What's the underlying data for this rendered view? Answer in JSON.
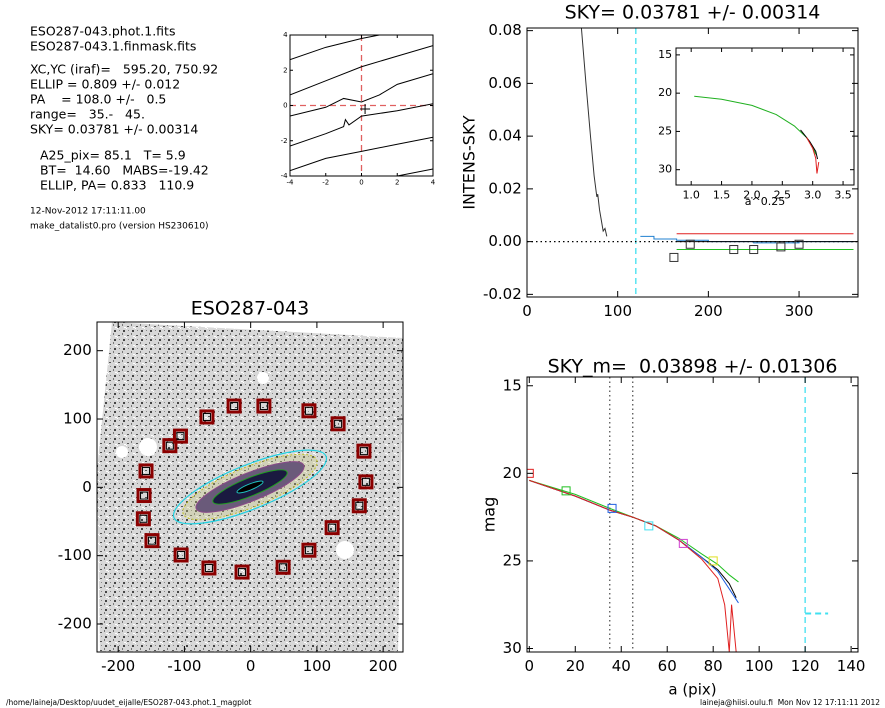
{
  "header": {
    "lines": [
      "ESO287-043.phot.1.fits",
      "ESO287-043.1.finmask.fits",
      "XC,YC (iraf)=   595.20, 750.92",
      "ELLIP = 0.809 +/- 0.012",
      "PA    = 108.0 +/-   0.5",
      "range=   35.-   45.",
      "SKY= 0.03781 +/- 0.00314",
      "A25_pix= 85.1   T= 5.9",
      "BT=  14.60   MABS=-19.42",
      "ELLIP, PA= 0.833   110.9"
    ],
    "timestamp": "12-Nov-2012 17:11:11.00",
    "program": "make_datalist0.pro (version HS230610)"
  },
  "footer": {
    "path": "/home/laineja/Desktop/uudet_eijalle/ESO287-043.phot.1_magplot",
    "user": "laineja@hiisi.oulu.fi  Mon Nov 12 17:11:11 2012"
  },
  "chart_data": [
    {
      "type": "line",
      "xlim": [
        -4,
        4
      ],
      "ylim": [
        -4,
        4
      ],
      "xticks": [
        -4,
        -2,
        0,
        2,
        4
      ],
      "yticks": [
        -4,
        -2,
        0,
        2,
        4
      ],
      "vlines": [
        {
          "x": 0,
          "color": "#e06060",
          "style": "dashed"
        }
      ],
      "hlines": [
        {
          "y": 0,
          "color": "#e06060",
          "style": "dashed"
        }
      ],
      "series": [
        {
          "color": "#000000",
          "style": "solid",
          "x": [
            -4,
            -2,
            0,
            1
          ],
          "values": [
            2.6,
            3.3,
            3.8,
            4
          ]
        },
        {
          "color": "#000000",
          "style": "solid",
          "x": [
            -4,
            -2,
            0,
            2,
            4
          ],
          "values": [
            0.6,
            1.4,
            2.2,
            2.8,
            3.4
          ]
        },
        {
          "color": "#000000",
          "style": "solid",
          "x": [
            -4,
            -2,
            -1,
            0,
            1,
            2,
            4
          ],
          "values": [
            -0.6,
            -0.1,
            0.4,
            0.2,
            0.6,
            1.2,
            1.8
          ]
        },
        {
          "color": "#000000",
          "style": "solid",
          "x": [
            -4,
            -2,
            -1,
            -0.9,
            -0.7,
            0,
            2,
            4
          ],
          "values": [
            -2.3,
            -1.6,
            -1.2,
            -0.8,
            -1.1,
            -0.6,
            -0.3,
            0.1
          ]
        },
        {
          "color": "#000000",
          "style": "solid",
          "x": [
            -4,
            -2,
            0,
            2,
            4
          ],
          "values": [
            -3.7,
            -3.0,
            -2.6,
            -2.2,
            -1.8
          ]
        },
        {
          "color": "#000000",
          "style": "solid",
          "x": [
            2,
            4
          ],
          "values": [
            -4,
            -3.6
          ]
        },
        {
          "color": "#000000",
          "style": "cross",
          "x": [
            0.2
          ],
          "values": [
            -0.2
          ]
        }
      ]
    },
    {
      "type": "line",
      "title": "SKY= 0.03781 +/- 0.00314",
      "ylabel": "INTENS-SKY",
      "xlim": [
        0,
        365
      ],
      "ylim": [
        -0.021,
        0.081
      ],
      "xticks": [
        0,
        100,
        200,
        300
      ],
      "yticks": [
        -0.02,
        {
          "value": 0,
          "label": "0.00"
        },
        0.02,
        0.04,
        0.06,
        0.08
      ],
      "vlines": [
        {
          "x": 120,
          "color": "#40e0f0",
          "style": "dashed"
        }
      ],
      "hlines": [
        {
          "y": 0,
          "color": "#000000",
          "style": "dotted"
        }
      ],
      "series": [
        {
          "color": "#333333",
          "style": "solid",
          "x": [
            60,
            65,
            70,
            74,
            77,
            78,
            80,
            82,
            84,
            86,
            88
          ],
          "values": [
            0.081,
            0.06,
            0.04,
            0.025,
            0.017,
            0.018,
            0.012,
            0.008,
            0.004,
            0.005,
            0.002
          ]
        },
        {
          "color": "#2080d0",
          "style": "solid",
          "x": [
            125,
            140,
            140,
            165,
            165,
            200,
            200,
            250,
            250,
            300,
            300,
            360
          ],
          "values": [
            0.002,
            0.002,
            0.001,
            0.001,
            0.0005,
            0.0005,
            0,
            0,
            -0.0005,
            -0.0005,
            0,
            0
          ]
        },
        {
          "color": "#e02020",
          "style": "solid",
          "x": [
            165,
            360
          ],
          "values": [
            0.003,
            0.003
          ]
        },
        {
          "color": "#20c020",
          "style": "solid",
          "x": [
            165,
            360
          ],
          "values": [
            -0.003,
            -0.003
          ]
        },
        {
          "color": "#000000",
          "style": "solid",
          "x": [
            165,
            360
          ],
          "values": [
            0,
            0
          ]
        },
        {
          "color": "#333333",
          "style": "square",
          "x": [
            162,
            180,
            228,
            250,
            280,
            300
          ],
          "values": [
            -0.006,
            -0.001,
            -0.003,
            -0.003,
            -0.002,
            -0.001
          ]
        }
      ]
    },
    {
      "type": "line",
      "xlabel": "a^0.25",
      "xlim": [
        0.75,
        3.68
      ],
      "ylim": [
        14.1,
        32
      ],
      "yreverse": true,
      "xticks": [
        {
          "value": 1,
          "label": "1.0"
        },
        1.5,
        {
          "value": 2,
          "label": "2.0"
        },
        2.5,
        {
          "value": 3,
          "label": "3.0"
        },
        3.5
      ],
      "yticks": [
        15,
        20,
        25,
        30
      ],
      "series": [
        {
          "color": "#20b020",
          "style": "solid",
          "x": [
            1.05,
            1.5,
            2.0,
            2.4,
            2.7,
            2.9,
            3.0,
            3.05
          ],
          "values": [
            20.4,
            20.8,
            21.6,
            22.8,
            24.3,
            25.8,
            27.0,
            28.0
          ]
        },
        {
          "color": "#000000",
          "style": "solid",
          "x": [
            2.8,
            2.95,
            3.05,
            3.08
          ],
          "values": [
            24.8,
            26.3,
            27.6,
            28.6
          ]
        },
        {
          "color": "#e02020",
          "style": "solid",
          "x": [
            2.9,
            3.0,
            3.05,
            3.07,
            3.1
          ],
          "values": [
            25.8,
            27.2,
            28.5,
            30.5,
            29.0
          ]
        }
      ]
    },
    {
      "type": "scatter",
      "title": "ESO287-043",
      "xlim": [
        -232,
        230
      ],
      "ylim": [
        -241,
        242
      ],
      "xticks": [
        -200,
        -100,
        0,
        100,
        200
      ],
      "yticks": [
        -200,
        -100,
        0,
        100,
        200
      ],
      "series": [
        {
          "color": "#8b0000",
          "style": "box",
          "x": [
            -66,
            -25,
            20,
            88,
            132,
            171,
            174,
            164,
            123,
            88,
            49,
            -13,
            -63,
            -105,
            -149,
            -162,
            -161,
            -158,
            -122,
            -106
          ],
          "values": [
            103,
            119,
            119,
            112,
            93,
            53,
            8,
            -27,
            -59,
            -92,
            -117,
            -124,
            -118,
            -99,
            -78,
            -46,
            -12,
            24,
            61,
            75
          ]
        }
      ]
    },
    {
      "type": "line",
      "title": "SKY_m=  0.03898 +/- 0.01306",
      "xlabel": "a (pix)",
      "ylabel": "mag",
      "xlim": [
        -1,
        143
      ],
      "ylim": [
        14.5,
        30.2
      ],
      "yreverse": true,
      "xticks": [
        0,
        20,
        40,
        60,
        80,
        100,
        120,
        140
      ],
      "yticks": [
        15,
        20,
        25,
        30
      ],
      "vlines": [
        {
          "x": 35,
          "color": "#555555",
          "style": "dotted"
        },
        {
          "x": 45,
          "color": "#555555",
          "style": "dotted"
        },
        {
          "x": 120,
          "color": "#40e0f0",
          "style": "dashed"
        }
      ],
      "series": [
        {
          "color": "#40e0f0",
          "style": "dashed",
          "x": [
            120,
            130
          ],
          "values": [
            28,
            28
          ]
        },
        {
          "color": "#000000",
          "style": "solid",
          "x": [
            0,
            20,
            35,
            45,
            55,
            65,
            75,
            82,
            87,
            90
          ],
          "values": [
            20.4,
            21.3,
            22.1,
            22.5,
            23,
            23.8,
            24.8,
            25.5,
            26.3,
            27.1
          ]
        },
        {
          "color": "#2060e0",
          "style": "solid",
          "x": [
            0,
            20,
            35,
            45,
            55,
            65,
            75,
            82,
            87,
            91
          ],
          "values": [
            20.4,
            21.3,
            22.1,
            22.5,
            23,
            23.8,
            24.8,
            25.6,
            26.6,
            27.4
          ]
        },
        {
          "color": "#20c020",
          "style": "solid",
          "x": [
            0,
            20,
            35,
            45,
            55,
            65,
            75,
            82,
            87,
            91
          ],
          "values": [
            20.4,
            21.2,
            22.0,
            22.5,
            23,
            23.7,
            24.6,
            25.2,
            25.8,
            26.2
          ]
        },
        {
          "color": "#e02020",
          "style": "solid",
          "x": [
            0,
            20,
            35,
            45,
            55,
            65,
            75,
            82,
            85,
            87,
            88,
            90
          ],
          "values": [
            20.4,
            21.3,
            22.1,
            22.5,
            23,
            23.8,
            24.9,
            26.0,
            27.5,
            30.2,
            27.5,
            30.2
          ]
        },
        {
          "color": "#e02020",
          "style": "square",
          "x": [
            0
          ],
          "values": [
            20
          ]
        },
        {
          "color": "#20c020",
          "style": "square",
          "x": [
            16
          ],
          "values": [
            21
          ]
        },
        {
          "color": "#2060e0",
          "style": "square",
          "x": [
            36
          ],
          "values": [
            22
          ]
        },
        {
          "color": "#40e0f0",
          "style": "square",
          "x": [
            52
          ],
          "values": [
            23
          ]
        },
        {
          "color": "#d040d0",
          "style": "square",
          "x": [
            67
          ],
          "values": [
            24
          ]
        },
        {
          "color": "#e0e020",
          "style": "square",
          "x": [
            80
          ],
          "values": [
            25
          ]
        }
      ]
    }
  ]
}
